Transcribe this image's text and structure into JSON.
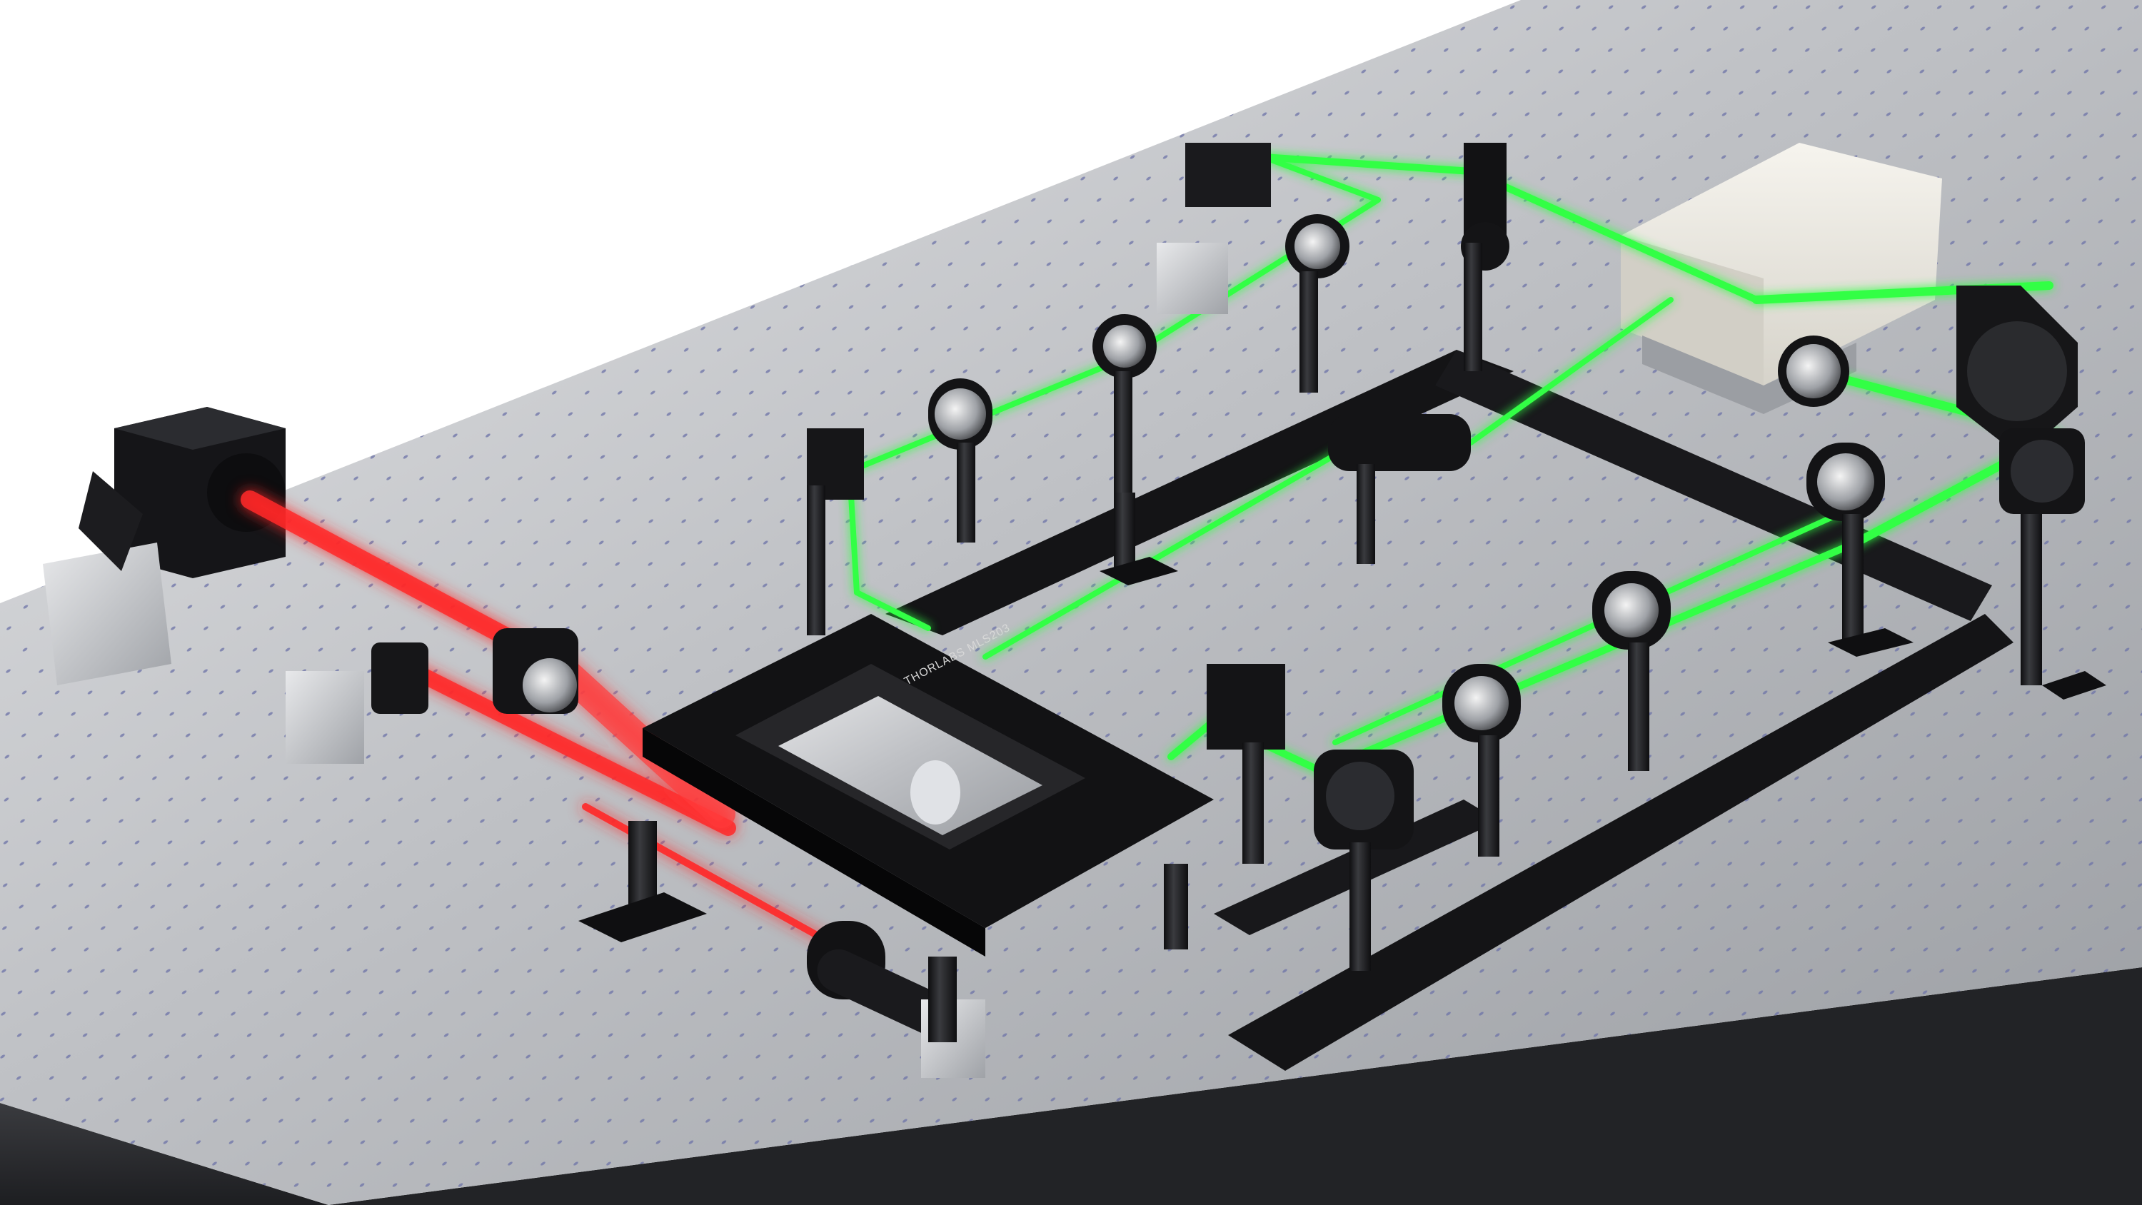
{
  "scene": {
    "stage_label": "THORLABS MLS203",
    "colors": {
      "background": "#ffffff",
      "table_top_light": "#d9dadc",
      "table_top_mid": "#b4b6ba",
      "table_top_dark": "#8a8d92",
      "table_side": "#2b2c2f",
      "hole_color": "#6f74a8",
      "component_black": "#141416",
      "component_dark": "#232428",
      "aluminum": "#c9cbcf",
      "enclosure_white": "#eceae4",
      "laser_red": "#ff2a2a",
      "laser_green": "#33ff44"
    },
    "icons": [
      "optical-table",
      "red-laser-beam",
      "green-laser-beam",
      "lens-mount",
      "mirror-mount",
      "translation-stage",
      "camera",
      "laser-enclosure",
      "optical-post",
      "rail"
    ]
  }
}
